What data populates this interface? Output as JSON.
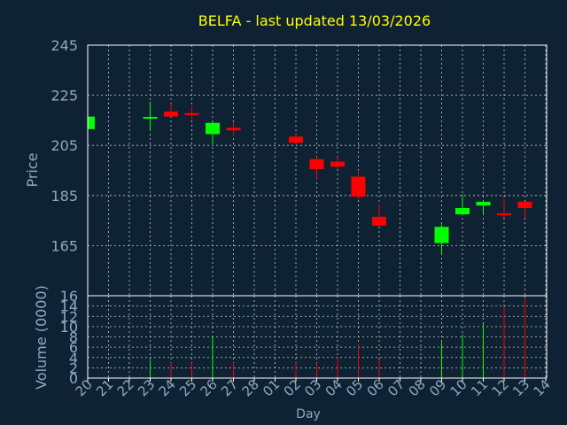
{
  "colors": {
    "background": "#0f2233",
    "frame": "#ffffff",
    "grid": "#c8c8c8",
    "axis_text": "#8fa9c4",
    "title": "#ffff00",
    "up": "#00ff00",
    "down": "#ff0000"
  },
  "chart_data": [
    {
      "type": "candlestick",
      "title": "BELFA - last updated 13/03/2026",
      "ylabel": "Price",
      "ylim": [
        145,
        245
      ],
      "yticks": [
        165,
        185,
        205,
        225,
        245
      ],
      "grid": true,
      "categories": [
        "20",
        "21",
        "22",
        "23",
        "24",
        "25",
        "26",
        "27",
        "28",
        "01",
        "02",
        "03",
        "04",
        "05",
        "06",
        "07",
        "08",
        "09",
        "10",
        "11",
        "12",
        "13",
        "14"
      ],
      "candles": [
        {
          "x": "20",
          "open": 211.5,
          "high": 216.5,
          "low": 211.5,
          "close": 216.5
        },
        {
          "x": "23",
          "open": 215.5,
          "high": 222.5,
          "low": 211.0,
          "close": 216.0
        },
        {
          "x": "24",
          "open": 218.5,
          "high": 221.5,
          "low": 216.5,
          "close": 216.5
        },
        {
          "x": "25",
          "open": 217.5,
          "high": 220.5,
          "low": 215.5,
          "close": 217.0
        },
        {
          "x": "26",
          "open": 209.5,
          "high": 214.5,
          "low": 205.5,
          "close": 214.0
        },
        {
          "x": "27",
          "open": 212.0,
          "high": 214.0,
          "low": 209.0,
          "close": 211.0
        },
        {
          "x": "02",
          "open": 208.5,
          "high": 209.5,
          "low": 205.5,
          "close": 206.0
        },
        {
          "x": "03",
          "open": 199.5,
          "high": 200.5,
          "low": 191.5,
          "close": 195.5
        },
        {
          "x": "04",
          "open": 198.5,
          "high": 200.5,
          "low": 195.5,
          "close": 196.5
        },
        {
          "x": "05",
          "open": 192.5,
          "high": 194.5,
          "low": 183.5,
          "close": 184.5
        },
        {
          "x": "06",
          "open": 176.5,
          "high": 181.5,
          "low": 172.5,
          "close": 173.0
        },
        {
          "x": "09",
          "open": 166.0,
          "high": 173.5,
          "low": 161.5,
          "close": 172.5
        },
        {
          "x": "10",
          "open": 177.5,
          "high": 185.5,
          "low": 177.0,
          "close": 180.0
        },
        {
          "x": "11",
          "open": 181.0,
          "high": 183.0,
          "low": 177.5,
          "close": 182.5
        },
        {
          "x": "12",
          "open": 177.5,
          "high": 183.5,
          "low": 176.0,
          "close": 177.0
        },
        {
          "x": "13",
          "open": 182.5,
          "high": 182.5,
          "low": 176.0,
          "close": 180.0
        }
      ]
    },
    {
      "type": "bar",
      "ylabel": "Volume (0000)",
      "xlabel": "Day",
      "ylim": [
        0,
        16
      ],
      "yticks": [
        0,
        2,
        4,
        6,
        8,
        10,
        12,
        14,
        16
      ],
      "grid": true,
      "categories": [
        "20",
        "21",
        "22",
        "23",
        "24",
        "25",
        "26",
        "27",
        "28",
        "01",
        "02",
        "03",
        "04",
        "05",
        "06",
        "07",
        "08",
        "09",
        "10",
        "11",
        "12",
        "13",
        "14"
      ],
      "bars": [
        {
          "x": "23",
          "value": 3.5,
          "direction": "up"
        },
        {
          "x": "24",
          "value": 3.0,
          "direction": "down"
        },
        {
          "x": "25",
          "value": 3.0,
          "direction": "down"
        },
        {
          "x": "26",
          "value": 8.0,
          "direction": "up"
        },
        {
          "x": "27",
          "value": 3.0,
          "direction": "down"
        },
        {
          "x": "02",
          "value": 3.0,
          "direction": "down"
        },
        {
          "x": "03",
          "value": 3.0,
          "direction": "down"
        },
        {
          "x": "04",
          "value": 4.0,
          "direction": "down"
        },
        {
          "x": "05",
          "value": 6.5,
          "direction": "down"
        },
        {
          "x": "06",
          "value": 3.5,
          "direction": "down"
        },
        {
          "x": "09",
          "value": 7.0,
          "direction": "up"
        },
        {
          "x": "10",
          "value": 8.5,
          "direction": "up"
        },
        {
          "x": "11",
          "value": 10.5,
          "direction": "up"
        },
        {
          "x": "12",
          "value": 14.0,
          "direction": "down"
        },
        {
          "x": "13",
          "value": 15.5,
          "direction": "down"
        }
      ]
    }
  ]
}
